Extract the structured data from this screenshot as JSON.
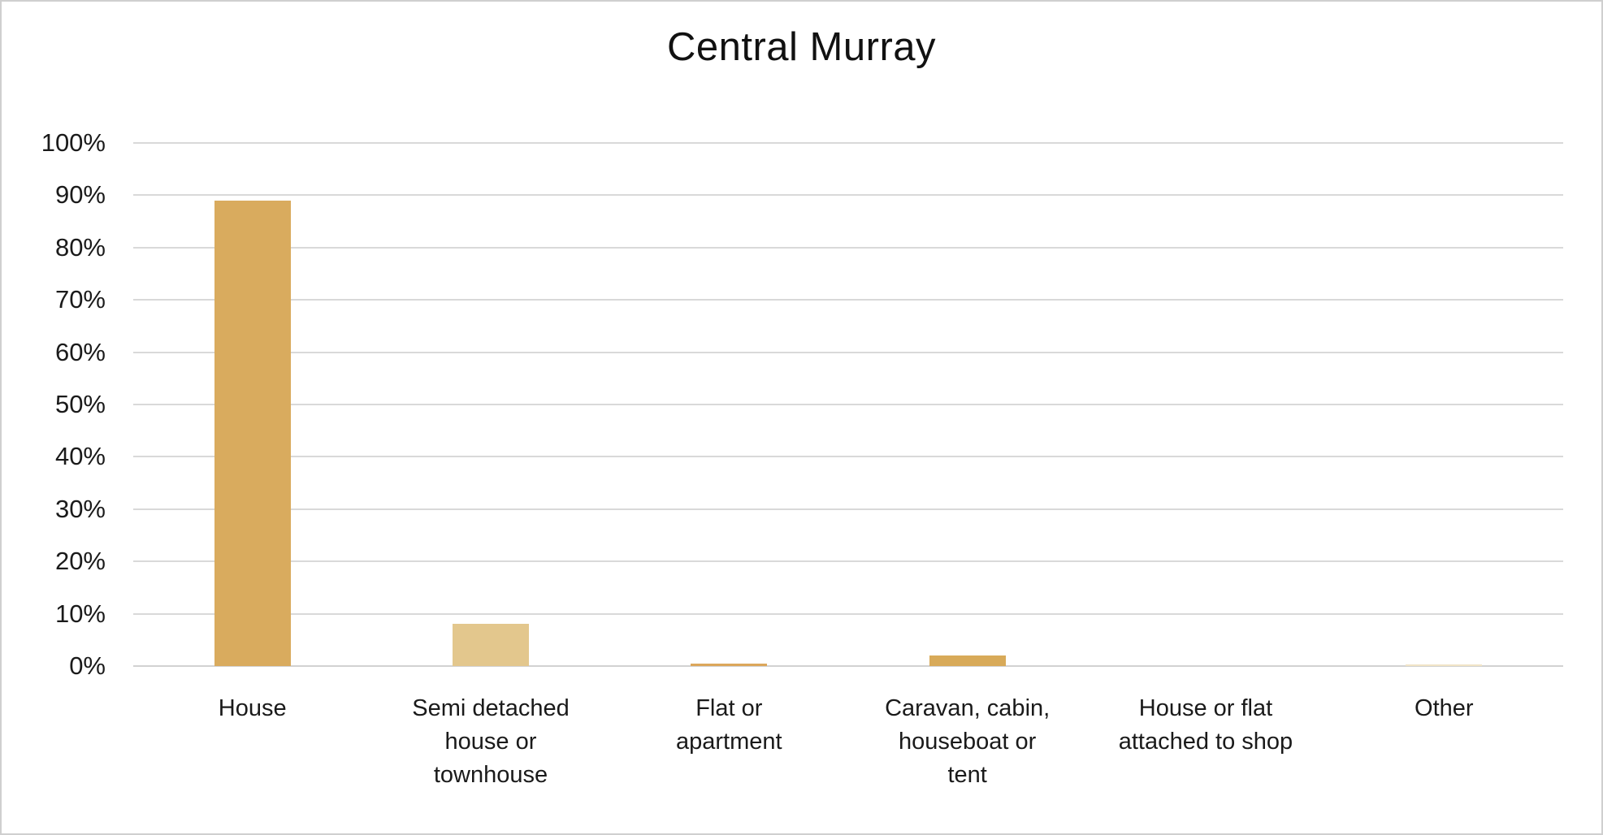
{
  "chart_data": {
    "type": "bar",
    "title": "Central Murray",
    "categories": [
      "House",
      "Semi detached house or townhouse",
      "Flat or apartment",
      "Caravan, cabin, houseboat or tent",
      "House or flat attached to shop",
      "Other"
    ],
    "values": [
      89,
      8,
      0.5,
      2,
      0,
      0.3
    ],
    "value_unit": "%",
    "bar_colors": [
      "#d9ab5e",
      "#e3c78d",
      "#dca75b",
      "#d8aa59",
      "#d9ab5e",
      "#f1e4c7"
    ],
    "yticks": [
      "0%",
      "10%",
      "20%",
      "30%",
      "40%",
      "50%",
      "60%",
      "70%",
      "80%",
      "90%",
      "100%"
    ],
    "ytick_values": [
      0,
      10,
      20,
      30,
      40,
      50,
      60,
      70,
      80,
      90,
      100
    ],
    "ylim": [
      0,
      100
    ],
    "xlabel": "",
    "ylabel": "",
    "grid": true,
    "legend": "none",
    "gridline_color": "#d9d9d9",
    "background_color": "#ffffff"
  }
}
